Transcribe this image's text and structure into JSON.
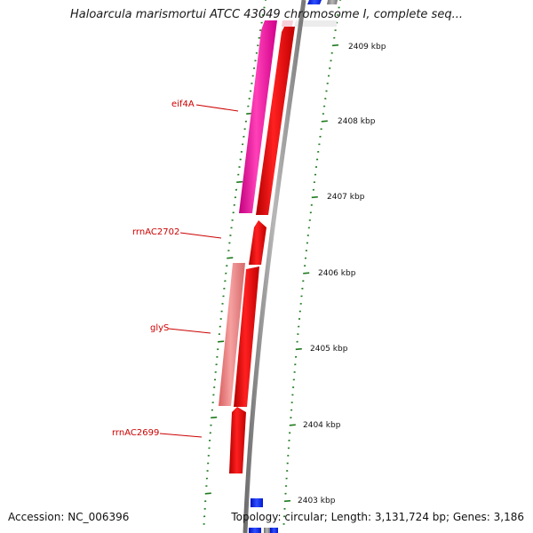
{
  "title": "Haloarcula marismortui ATCC 43049 chromosome I, complete seq...",
  "footer": {
    "accession": "Accession: NC_006396",
    "summary": "Topology: circular; Length: 3,131,724 bp; Genes: 3,186"
  },
  "ruler_labels": [
    "2409 kbp",
    "2408 kbp",
    "2407 kbp",
    "2406 kbp",
    "2405 kbp",
    "2404 kbp",
    "2403 kbp"
  ],
  "gene_labels": [
    "eif4A",
    "rrnAC2702",
    "glyS",
    "rrnAC2699"
  ],
  "colors": {
    "tick": "#1e7a1e",
    "ruler_text": "#111111",
    "label": "#cc0000",
    "forward_cds": "#ff0000",
    "reverse_cds": "#ef7f7f",
    "reverse_cds_magenta": "#ff20a8",
    "other_feature": "#1a2fff",
    "backbone": "#888888"
  }
}
